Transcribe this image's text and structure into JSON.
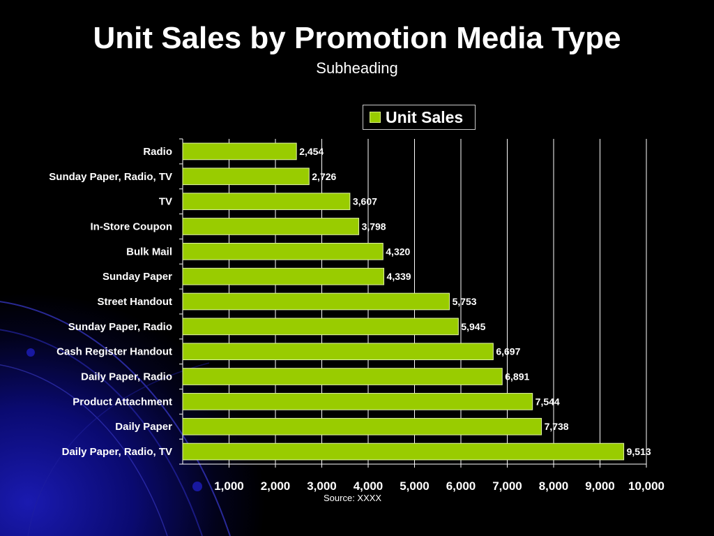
{
  "slide": {
    "title": "Unit Sales by Promotion Media Type",
    "subtitle": "Subheading",
    "source": "Source:  XXXX"
  },
  "colors": {
    "bar": "#99cc00",
    "background": "#000000",
    "text": "#ffffff",
    "grid": "#ffffff"
  },
  "chart_data": {
    "type": "bar",
    "orientation": "horizontal",
    "title": "",
    "xlabel": "",
    "ylabel": "",
    "categories": [
      "Radio",
      "Sunday Paper, Radio, TV",
      "TV",
      "In-Store Coupon",
      "Bulk Mail",
      "Sunday Paper",
      "Street Handout",
      "Sunday Paper, Radio",
      "Cash Register Handout",
      "Daily Paper, Radio",
      "Product Attachment",
      "Daily Paper",
      "Daily Paper, Radio, TV"
    ],
    "series": [
      {
        "name": "Unit Sales",
        "values": [
          2454,
          2726,
          3607,
          3798,
          4320,
          4339,
          5753,
          5945,
          6697,
          6891,
          7544,
          7738,
          9513
        ]
      }
    ],
    "value_labels": [
      "2,454",
      "2,726",
      "3,607",
      "3,798",
      "4,320",
      "4,339",
      "5,753",
      "5,945",
      "6,697",
      "6,891",
      "7,544",
      "7,738",
      "9,513"
    ],
    "xticks": [
      1000,
      2000,
      3000,
      4000,
      5000,
      6000,
      7000,
      8000,
      9000,
      10000
    ],
    "xtick_labels": [
      "1,000",
      "2,000",
      "3,000",
      "4,000",
      "5,000",
      "6,000",
      "7,000",
      "8,000",
      "9,000",
      "10,000"
    ],
    "xlim": [
      0,
      10000
    ],
    "grid": true,
    "legend": "top-center"
  }
}
